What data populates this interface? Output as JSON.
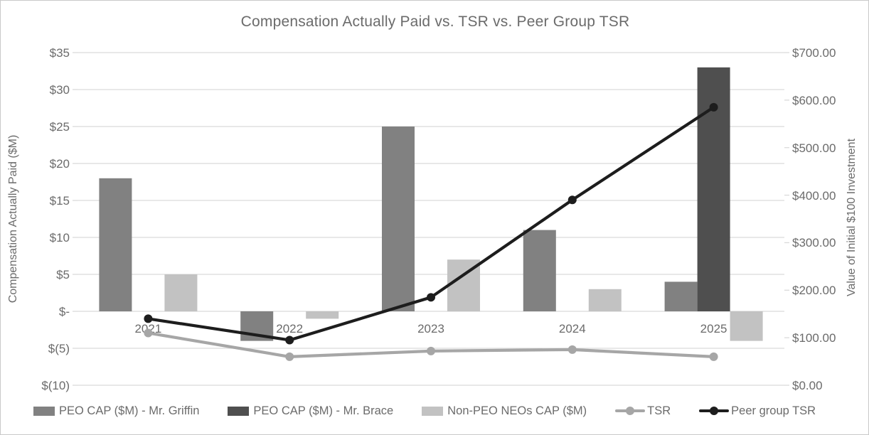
{
  "title": "Compensation Actually Paid vs. TSR vs. Peer Group TSR",
  "left_axis": {
    "title": "Compensation Actually Paid ($M)",
    "ticks": [
      "$35",
      "$30",
      "$25",
      "$20",
      "$15",
      "$10",
      "$5",
      "$-",
      "$(5)",
      "$(10)"
    ],
    "tick_values": [
      35,
      30,
      25,
      20,
      15,
      10,
      5,
      0,
      -5,
      -10
    ]
  },
  "right_axis": {
    "title": "Value of Initial $100 Investment",
    "ticks": [
      "$700.00",
      "$600.00",
      "$500.00",
      "$400.00",
      "$300.00",
      "$200.00",
      "$100.00",
      "$0.00"
    ],
    "tick_values": [
      700,
      600,
      500,
      400,
      300,
      200,
      100,
      0
    ]
  },
  "chart_data": {
    "type": "bar",
    "subtype": "combo-bar-line-dual-axis",
    "title": "Compensation Actually Paid vs. TSR vs. Peer Group TSR",
    "categories": [
      "2021",
      "2022",
      "2023",
      "2024",
      "2025"
    ],
    "bar_series": [
      {
        "name": "PEO CAP ($M) - Mr. Griffin",
        "color": "#818181",
        "axis": "left",
        "values": [
          18,
          -4,
          25,
          11,
          4
        ]
      },
      {
        "name": "PEO CAP ($M) - Mr. Brace",
        "color": "#4f4f4f",
        "axis": "left",
        "values": [
          null,
          null,
          null,
          null,
          33
        ]
      },
      {
        "name": "Non-PEO NEOs CAP ($M)",
        "color": "#c2c2c2",
        "axis": "left",
        "values": [
          5,
          -1,
          7,
          3,
          -4
        ]
      }
    ],
    "line_series": [
      {
        "name": "TSR",
        "color": "#a6a6a6",
        "axis": "right",
        "values": [
          110,
          60,
          72,
          75,
          60
        ]
      },
      {
        "name": "Peer group TSR",
        "color": "#1d1d1d",
        "axis": "right",
        "values": [
          140,
          95,
          185,
          390,
          585
        ]
      }
    ],
    "xlabel": "",
    "ylabel_left": "Compensation Actually Paid ($M)",
    "ylabel_right": "Value of Initial $100 Investment",
    "left_ylim": [
      -10,
      35
    ],
    "right_ylim": [
      0,
      700
    ],
    "grid": "horizontal",
    "gridline_color": "#dadada",
    "legend_position": "bottom",
    "background": "#ffffff",
    "text_color": "#6b6b6b"
  }
}
